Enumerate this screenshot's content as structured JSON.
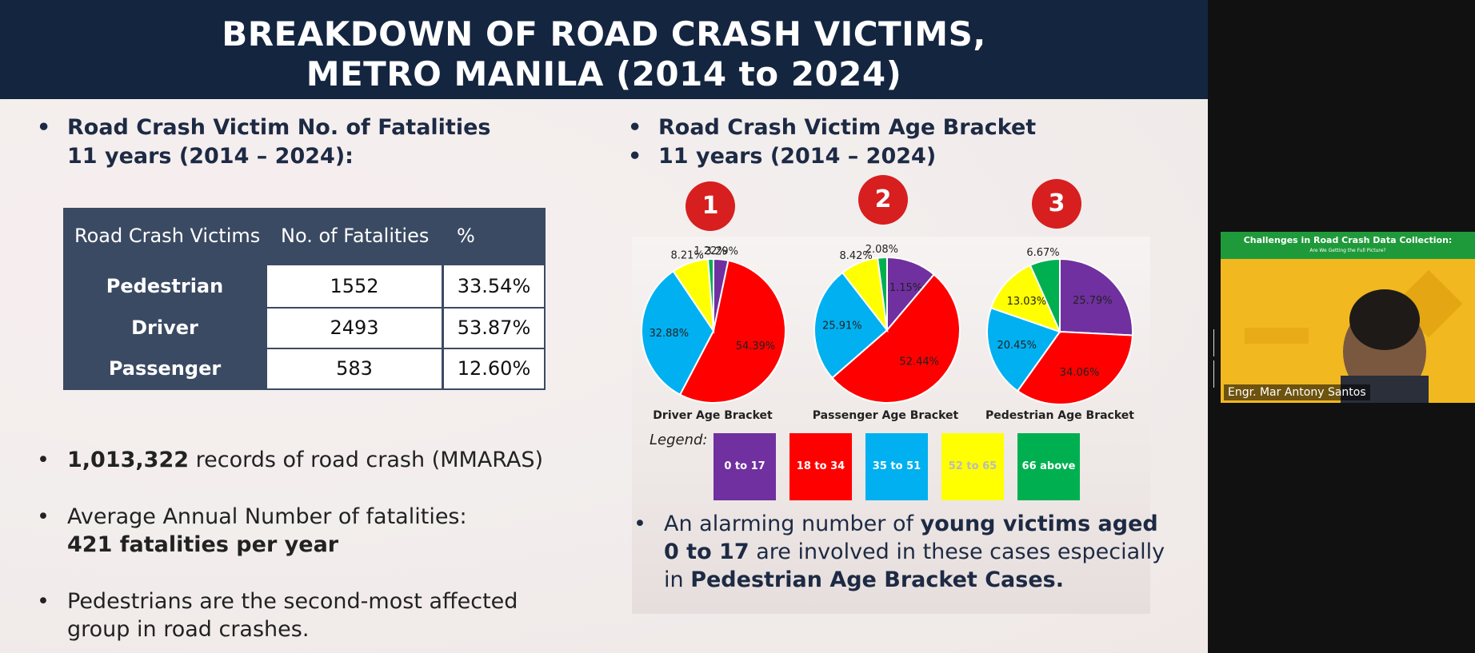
{
  "slide": {
    "title_line1": "BREAKDOWN OF ROAD CRASH VICTIMS,",
    "title_line2": "METRO MANILA (2014 to 2024)",
    "left": {
      "heading1": "Road Crash Victim No. of Fatalities",
      "heading2": "11 years (2014 – 2024):",
      "table": {
        "headers": [
          "Road Crash Victims",
          "No. of Fatalities",
          "%"
        ],
        "rows": [
          {
            "label": "Pedestrian",
            "fatalities": "1552",
            "percent": "33.54%"
          },
          {
            "label": "Driver",
            "fatalities": "2493",
            "percent": "53.87%"
          },
          {
            "label": "Passenger",
            "fatalities": "583",
            "percent": "12.60%"
          }
        ]
      },
      "bullet1_bold": "1,013,322",
      "bullet1_rest": " records of road crash (MMARAS)",
      "bullet2_line1": "Average Annual Number of fatalities:",
      "bullet2_bold": "421 fatalities per year",
      "bullet3_line1": "Pedestrians are the second-most affected",
      "bullet3_line2": "group in road crashes."
    },
    "right": {
      "heading1": "Road Crash Victim Age Bracket",
      "heading2": "11 years (2014 – 2024)",
      "badges": [
        "1",
        "2",
        "3"
      ],
      "legend_title": "Legend:",
      "legend": [
        {
          "label": "0 to 17",
          "color": "#7030a0"
        },
        {
          "label": "18 to 34",
          "color": "#ff0000"
        },
        {
          "label": "35 to 51",
          "color": "#00b0f0"
        },
        {
          "label": "52 to 65",
          "color": "#ffff00"
        },
        {
          "label": "66 above",
          "color": "#00b050"
        }
      ],
      "note_part1": "An alarming number of ",
      "note_bold1": "young victims aged",
      "note_bold2": "0 to 17",
      "note_part2": " are involved in these cases especially",
      "note_part3": "in ",
      "note_bold3": "Pedestrian Age Bracket Cases."
    }
  },
  "chart_data": [
    {
      "type": "pie",
      "title": "Driver Age Bracket",
      "categories": [
        "0 to 17",
        "18 to 34",
        "35 to 51",
        "52 to 65",
        "66 above"
      ],
      "values": [
        3.29,
        54.39,
        32.88,
        8.21,
        1.22
      ],
      "labels": [
        "3.29%",
        "54.39%",
        "32.88%",
        "8.21%",
        "1.22%"
      ]
    },
    {
      "type": "pie",
      "title": "Passenger Age Bracket",
      "categories": [
        "0 to 17",
        "18 to 34",
        "35 to 51",
        "52 to 65",
        "66 above"
      ],
      "values": [
        11.15,
        52.44,
        25.91,
        8.42,
        2.08
      ],
      "labels": [
        "11.15%",
        "52.44%",
        "25.91%",
        "8.42%",
        "2.08%"
      ]
    },
    {
      "type": "pie",
      "title": "Pedestrian Age Bracket",
      "categories": [
        "0 to 17",
        "18 to 34",
        "35 to 51",
        "52 to 65",
        "66 above"
      ],
      "values": [
        25.79,
        34.06,
        20.45,
        13.03,
        6.67
      ],
      "labels": [
        "25.79%",
        "34.06%",
        "20.45%",
        "13.03%",
        "6.67%"
      ]
    }
  ],
  "video": {
    "banner_title": "Challenges in Road Crash Data Collection:",
    "banner_sub": "Are We Getting the Full Picture?",
    "name": "Engr. Mar Antony Santos"
  }
}
